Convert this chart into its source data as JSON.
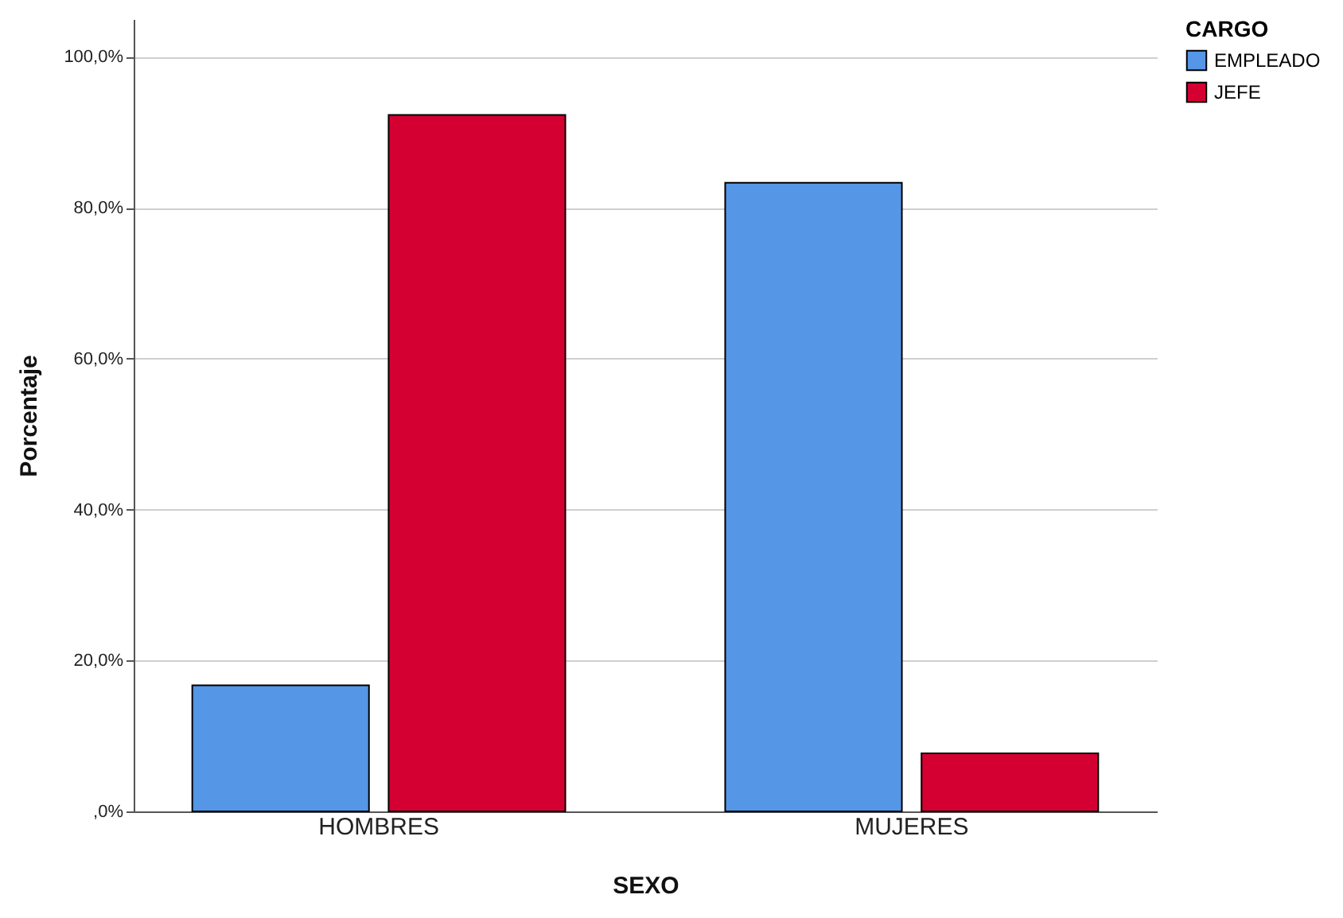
{
  "chart_data": {
    "type": "bar",
    "xlabel": "SEXO",
    "ylabel": "Porcentaje",
    "legend_title": "CARGO",
    "categories": [
      "HOMBRES",
      "MUJERES"
    ],
    "series": [
      {
        "name": "EMPLEADO",
        "color": "#5596e6",
        "values": [
          16.7,
          83.3
        ]
      },
      {
        "name": "JEFE",
        "color": "#d50032",
        "values": [
          92.3,
          7.7
        ]
      }
    ],
    "ylim": [
      0,
      105
    ],
    "yticks": [
      {
        "value": 0,
        "label": ",0%"
      },
      {
        "value": 20,
        "label": "20,0%"
      },
      {
        "value": 40,
        "label": "40,0%"
      },
      {
        "value": 60,
        "label": "60,0%"
      },
      {
        "value": 80,
        "label": "80,0%"
      },
      {
        "value": 100,
        "label": "100,0%"
      }
    ],
    "grid": "y",
    "legend": "top right"
  }
}
